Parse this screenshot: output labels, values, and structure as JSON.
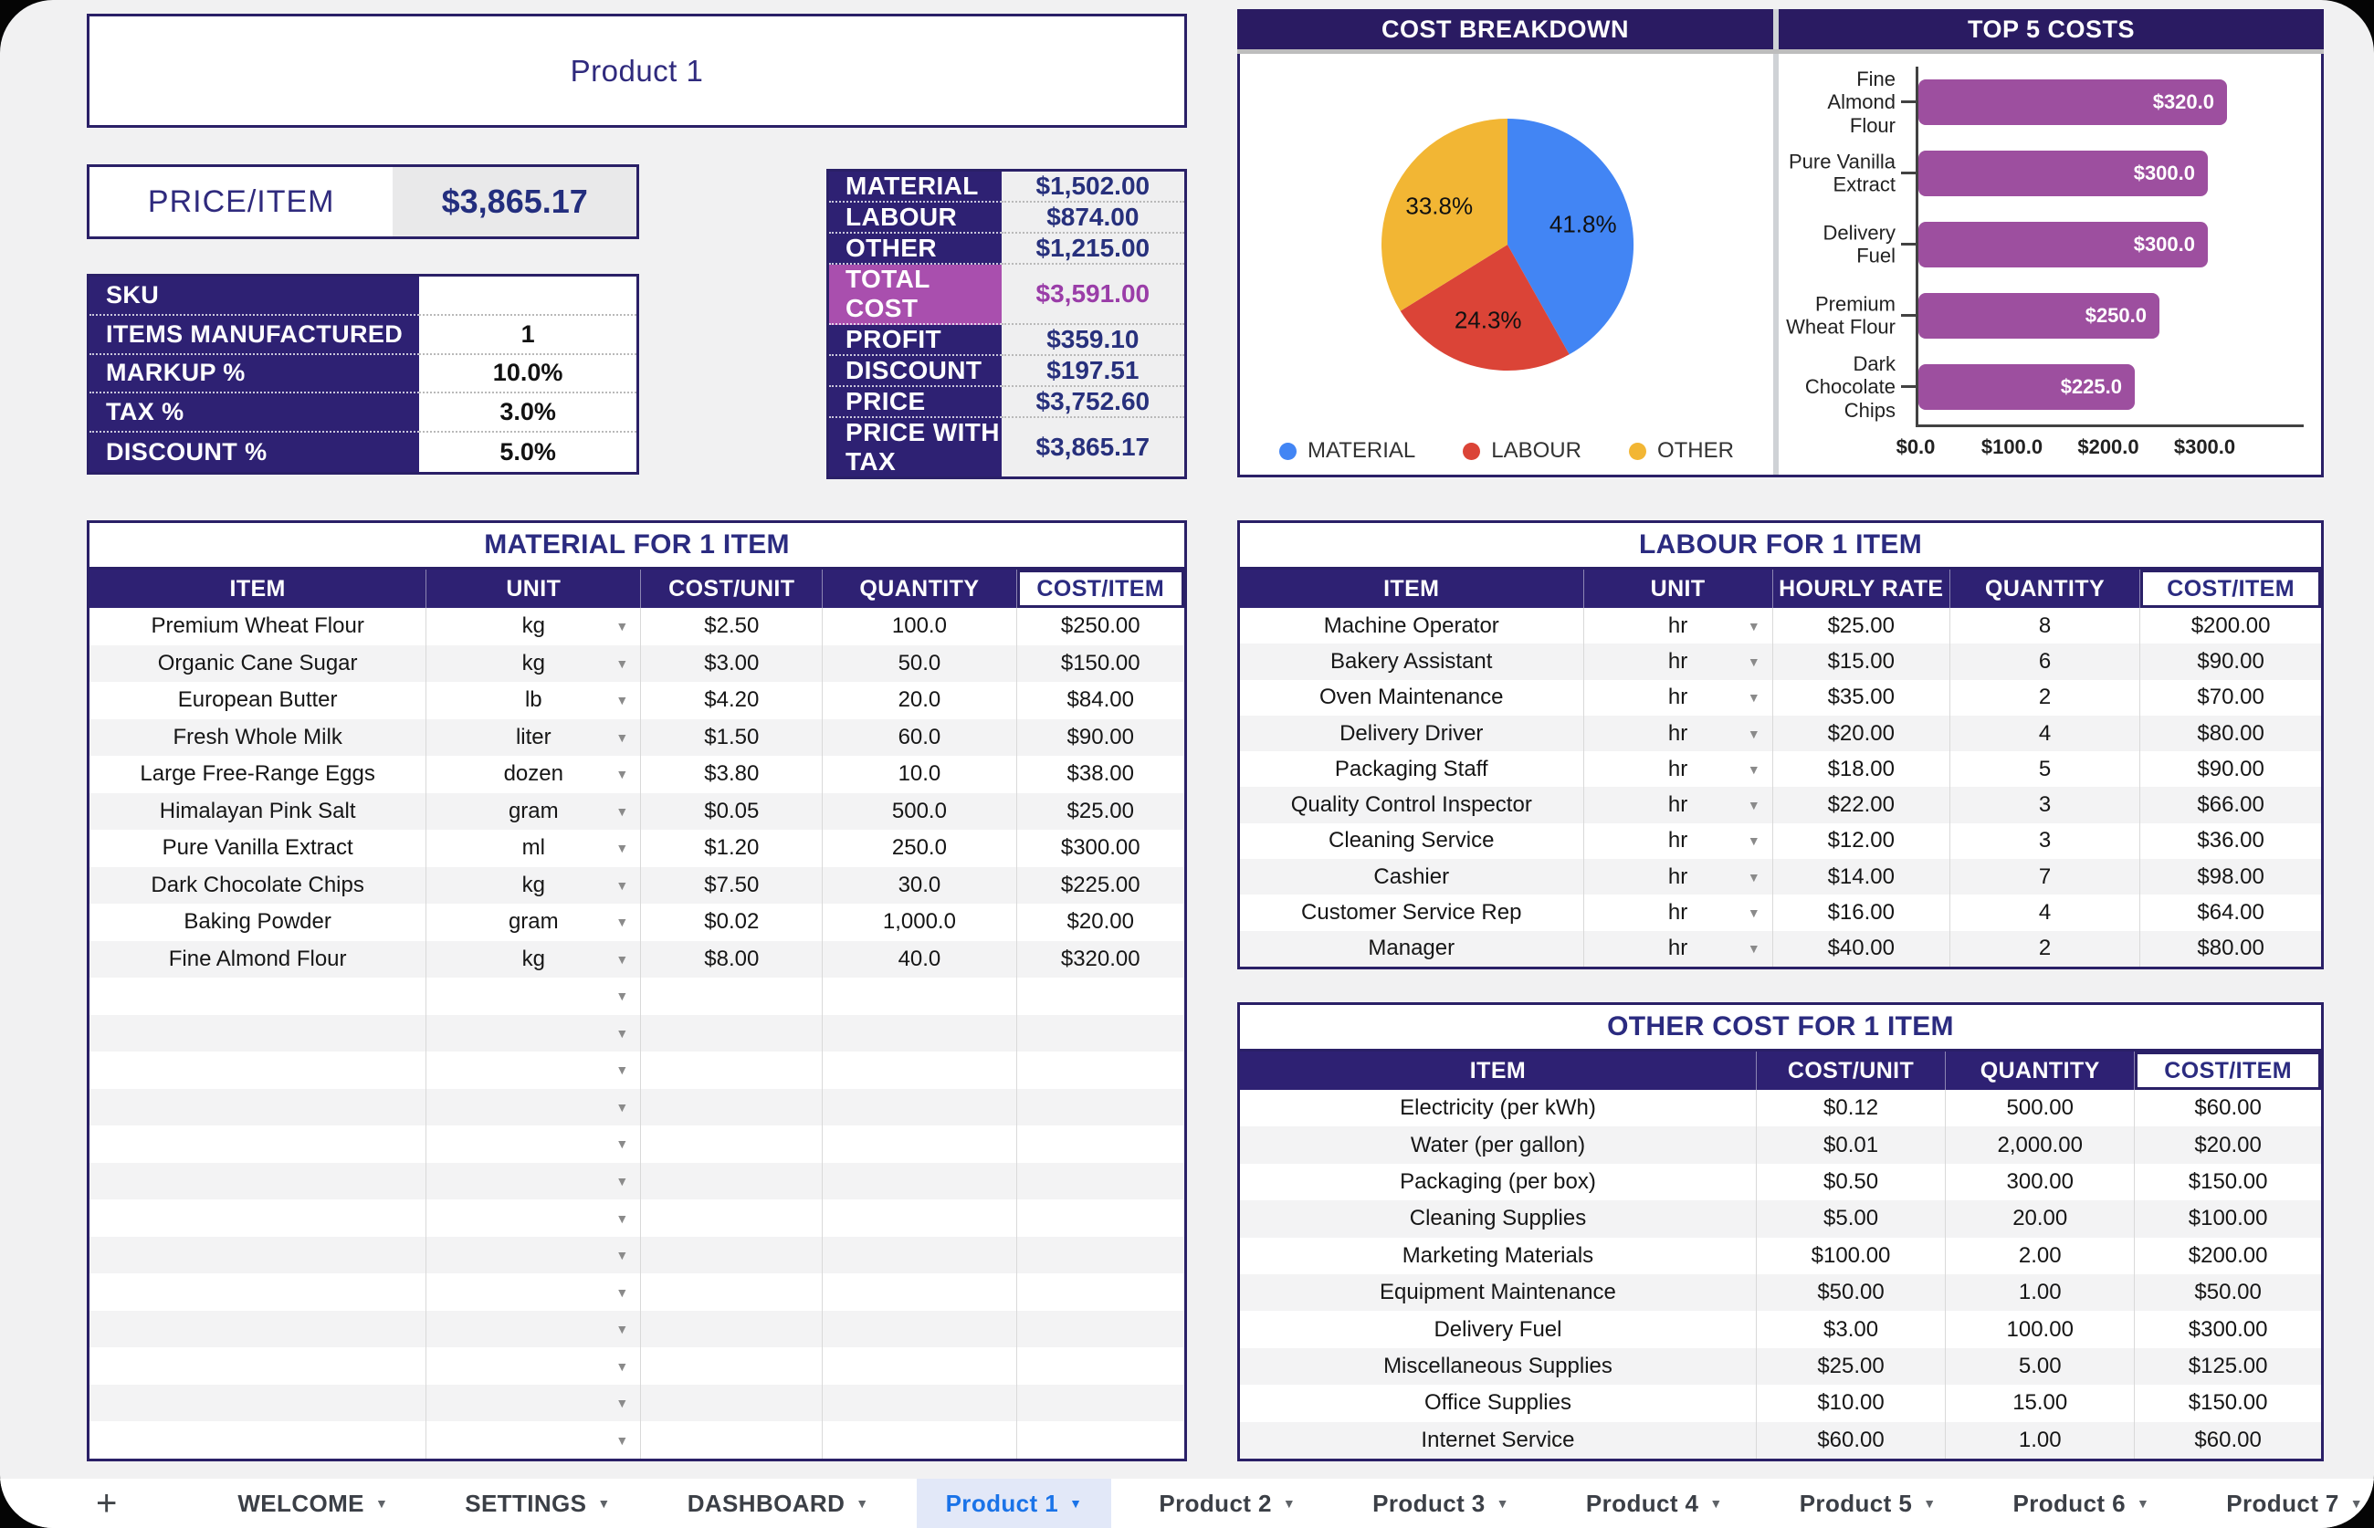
{
  "page": {
    "title": "Product 1"
  },
  "price_item": {
    "label": "PRICE/ITEM",
    "value": "$3,865.17"
  },
  "sku": {
    "rows": [
      {
        "label": "SKU",
        "value": ""
      },
      {
        "label": "ITEMS MANUFACTURED",
        "value": "1"
      },
      {
        "label": "MARKUP %",
        "value": "10.0%"
      },
      {
        "label": "TAX %",
        "value": "3.0%"
      },
      {
        "label": "DISCOUNT %",
        "value": "5.0%"
      }
    ]
  },
  "summary": {
    "rows": [
      {
        "label": "MATERIAL",
        "value": "$1,502.00",
        "highlight": false
      },
      {
        "label": "LABOUR",
        "value": "$874.00",
        "highlight": false
      },
      {
        "label": "OTHER",
        "value": "$1,215.00",
        "highlight": false
      },
      {
        "label": "TOTAL COST",
        "value": "$3,591.00",
        "highlight": true
      },
      {
        "label": "PROFIT",
        "value": "$359.10",
        "highlight": false
      },
      {
        "label": "DISCOUNT",
        "value": "$197.51",
        "highlight": false
      },
      {
        "label": "PRICE",
        "value": "$3,752.60",
        "highlight": false
      },
      {
        "label": "PRICE WITH TAX",
        "value": "$3,865.17",
        "highlight": false
      }
    ]
  },
  "chart_data": [
    {
      "type": "pie",
      "title": "COST BREAKDOWN",
      "labels": [
        "MATERIAL",
        "LABOUR",
        "OTHER"
      ],
      "values": [
        41.8,
        24.3,
        33.8
      ],
      "slice_labels": [
        "41.8%",
        "24.3%",
        "33.8%"
      ],
      "colors": [
        "#4285f4",
        "#db4437",
        "#f2b634"
      ],
      "legend_position": "bottom",
      "grid": false
    },
    {
      "type": "bar",
      "title": "TOP 5 COSTS",
      "orientation": "horizontal",
      "categories": [
        "Fine Almond Flour",
        "Pure Vanilla Extract",
        "Delivery Fuel",
        "Premium Wheat Flour",
        "Dark Chocolate Chips"
      ],
      "category_lines": [
        [
          "Fine",
          "Almond",
          "Flour"
        ],
        [
          "Pure Vanilla",
          "Extract"
        ],
        [
          "Delivery",
          "Fuel"
        ],
        [
          "Premium",
          "Wheat Flour"
        ],
        [
          "Dark",
          "Chocolate",
          "Chips"
        ]
      ],
      "values": [
        320,
        300,
        300,
        250,
        225
      ],
      "value_labels": [
        "$320.0",
        "$300.0",
        "$300.0",
        "$250.0",
        "$225.0"
      ],
      "xlabel": "",
      "ylabel": "",
      "xlim": [
        0,
        400
      ],
      "x_ticks": [
        {
          "v": 0,
          "label": "$0.0"
        },
        {
          "v": 100,
          "label": "$100.0"
        },
        {
          "v": 200,
          "label": "$200.0"
        },
        {
          "v": 300,
          "label": "$300.0"
        }
      ],
      "bar_color": "#9d4f9f",
      "grid": false
    }
  ],
  "material": {
    "title": "MATERIAL FOR 1 ITEM",
    "columns": [
      "ITEM",
      "UNIT",
      "COST/UNIT",
      "QUANTITY",
      "COST/ITEM"
    ],
    "rows": [
      [
        "Premium Wheat Flour",
        "kg",
        "$2.50",
        "100.0",
        "$250.00"
      ],
      [
        "Organic Cane Sugar",
        "kg",
        "$3.00",
        "50.0",
        "$150.00"
      ],
      [
        "European Butter",
        "lb",
        "$4.20",
        "20.0",
        "$84.00"
      ],
      [
        "Fresh Whole Milk",
        "liter",
        "$1.50",
        "60.0",
        "$90.00"
      ],
      [
        "Large Free-Range Eggs",
        "dozen",
        "$3.80",
        "10.0",
        "$38.00"
      ],
      [
        "Himalayan Pink Salt",
        "gram",
        "$0.05",
        "500.0",
        "$25.00"
      ],
      [
        "Pure Vanilla Extract",
        "ml",
        "$1.20",
        "250.0",
        "$300.00"
      ],
      [
        "Dark Chocolate Chips",
        "kg",
        "$7.50",
        "30.0",
        "$225.00"
      ],
      [
        "Baking Powder",
        "gram",
        "$0.02",
        "1,000.0",
        "$20.00"
      ],
      [
        "Fine Almond Flour",
        "kg",
        "$8.00",
        "40.0",
        "$320.00"
      ]
    ],
    "empty_rows": 13
  },
  "labour": {
    "title": "LABOUR FOR 1 ITEM",
    "columns": [
      "ITEM",
      "UNIT",
      "HOURLY RATE",
      "QUANTITY",
      "COST/ITEM"
    ],
    "rows": [
      [
        "Machine Operator",
        "hr",
        "$25.00",
        "8",
        "$200.00"
      ],
      [
        "Bakery Assistant",
        "hr",
        "$15.00",
        "6",
        "$90.00"
      ],
      [
        "Oven Maintenance",
        "hr",
        "$35.00",
        "2",
        "$70.00"
      ],
      [
        "Delivery Driver",
        "hr",
        "$20.00",
        "4",
        "$80.00"
      ],
      [
        "Packaging Staff",
        "hr",
        "$18.00",
        "5",
        "$90.00"
      ],
      [
        "Quality Control Inspector",
        "hr",
        "$22.00",
        "3",
        "$66.00"
      ],
      [
        "Cleaning Service",
        "hr",
        "$12.00",
        "3",
        "$36.00"
      ],
      [
        "Cashier",
        "hr",
        "$14.00",
        "7",
        "$98.00"
      ],
      [
        "Customer Service Rep",
        "hr",
        "$16.00",
        "4",
        "$64.00"
      ],
      [
        "Manager",
        "hr",
        "$40.00",
        "2",
        "$80.00"
      ]
    ],
    "empty_rows": 0
  },
  "other": {
    "title": "OTHER COST FOR 1 ITEM",
    "columns": [
      "ITEM",
      "COST/UNIT",
      "QUANTITY",
      "COST/ITEM"
    ],
    "rows": [
      [
        "Electricity (per kWh)",
        "$0.12",
        "500.00",
        "$60.00"
      ],
      [
        "Water (per gallon)",
        "$0.01",
        "2,000.00",
        "$20.00"
      ],
      [
        "Packaging (per box)",
        "$0.50",
        "300.00",
        "$150.00"
      ],
      [
        "Cleaning Supplies",
        "$5.00",
        "20.00",
        "$100.00"
      ],
      [
        "Marketing Materials",
        "$100.00",
        "2.00",
        "$200.00"
      ],
      [
        "Equipment Maintenance",
        "$50.00",
        "1.00",
        "$50.00"
      ],
      [
        "Delivery Fuel",
        "$3.00",
        "100.00",
        "$300.00"
      ],
      [
        "Miscellaneous Supplies",
        "$25.00",
        "5.00",
        "$125.00"
      ],
      [
        "Office Supplies",
        "$10.00",
        "15.00",
        "$150.00"
      ],
      [
        "Internet Service",
        "$60.00",
        "1.00",
        "$60.00"
      ]
    ],
    "empty_rows": 0
  },
  "tabs": {
    "items": [
      {
        "label": "WELCOME",
        "active": false
      },
      {
        "label": "SETTINGS",
        "active": false
      },
      {
        "label": "DASHBOARD",
        "active": false
      },
      {
        "label": "Product 1",
        "active": true
      },
      {
        "label": "Product 2",
        "active": false
      },
      {
        "label": "Product 3",
        "active": false
      },
      {
        "label": "Product 4",
        "active": false
      },
      {
        "label": "Product 5",
        "active": false
      },
      {
        "label": "Product 6",
        "active": false
      },
      {
        "label": "Product 7",
        "active": false
      }
    ]
  },
  "colors": {
    "navy_header": "#2e2173",
    "navy_border": "#2a2067",
    "highlight_magenta": "#a94fae",
    "highlight_value_text": "#9a3da8",
    "pie_material": "#4285f4",
    "pie_labour": "#db4437",
    "pie_other": "#f2b634",
    "bar_purple": "#9d4f9f",
    "active_tab_blue": "#1a73e8",
    "active_tab_bg": "#e2e8f8",
    "page_bg": "#f1f1f2"
  }
}
